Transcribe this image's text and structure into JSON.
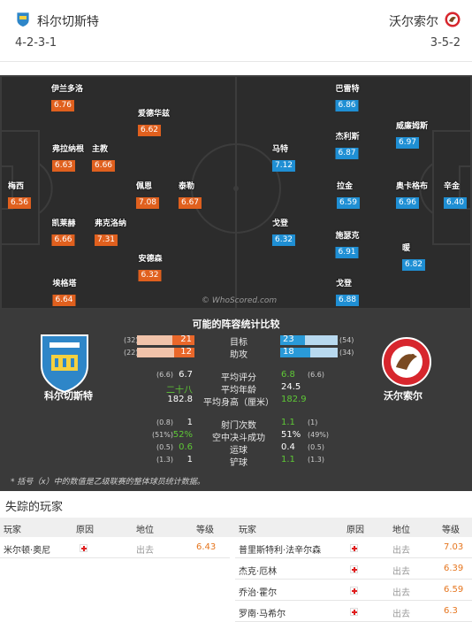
{
  "header": {
    "home": {
      "name": "科尔切斯特",
      "formation": "4-2-3-1",
      "crest": "colchester-crest-icon"
    },
    "away": {
      "name": "沃尔索尔",
      "formation": "3-5-2",
      "crest": "walsall-crest-icon"
    }
  },
  "pitch": {
    "watermark": "© WhoScored.com",
    "home_players": [
      {
        "name": "伊兰多洛",
        "rating": "6.76"
      },
      {
        "name": "爱德华兹",
        "rating": "6.62"
      },
      {
        "name": "弗拉纳根",
        "rating": "6.63"
      },
      {
        "name": "主教",
        "rating": "6.66"
      },
      {
        "name": "梅西",
        "rating": "6.56"
      },
      {
        "name": "佩恩",
        "rating": "7.08"
      },
      {
        "name": "泰勒",
        "rating": "6.67"
      },
      {
        "name": "凯莱赫",
        "rating": "6.66"
      },
      {
        "name": "弗克洛纳",
        "rating": "7.31"
      },
      {
        "name": "安德森",
        "rating": "6.32"
      },
      {
        "name": "埃格塔",
        "rating": "6.64"
      }
    ],
    "away_players": [
      {
        "name": "巴雷特",
        "rating": "6.86"
      },
      {
        "name": "威廉姆斯",
        "rating": "6.97"
      },
      {
        "name": "马特",
        "rating": "7.12"
      },
      {
        "name": "杰利斯",
        "rating": "6.87"
      },
      {
        "name": "拉金",
        "rating": "6.59"
      },
      {
        "name": "奥卡格布",
        "rating": "6.96"
      },
      {
        "name": "辛金",
        "rating": "6.40"
      },
      {
        "name": "戈登",
        "rating": "6.32"
      },
      {
        "name": "施瑟克",
        "rating": "6.91"
      },
      {
        "name": "暖",
        "rating": "6.82"
      },
      {
        "name": "戈登",
        "rating": "6.88"
      }
    ]
  },
  "comparison": {
    "title": "可能的阵容统计比较",
    "home_team": "科尔切斯特",
    "away_team": "沃尔索尔",
    "bars": [
      {
        "label": "目标",
        "home": "21",
        "home_prev": "(32)",
        "away": "23",
        "away_prev": "(54)",
        "home_frac": 0.39,
        "away_frac": 0.43
      },
      {
        "label": "助攻",
        "home": "12",
        "home_prev": "(22)",
        "away": "18",
        "away_prev": "(34)",
        "home_frac": 0.35,
        "away_frac": 0.53
      }
    ],
    "stats_a": [
      {
        "label": "平均评分",
        "home": "6.7",
        "home_prev": "(6.6)",
        "away": "6.8",
        "away_prev": "(6.6)",
        "home_green": false,
        "away_green": true
      },
      {
        "label": "平均年龄",
        "home": "二十八",
        "home_prev": "",
        "away": "24.5",
        "away_prev": "",
        "home_green": true,
        "away_green": false
      },
      {
        "label": "平均身高（厘米）",
        "home": "182.8",
        "home_prev": "",
        "away": "182.9",
        "away_prev": "",
        "home_green": false,
        "away_green": true
      }
    ],
    "stats_b": [
      {
        "label": "射门次数",
        "home": "1",
        "home_prev": "(0.8)",
        "away": "1.1",
        "away_prev": "(1)",
        "home_green": false,
        "away_green": true
      },
      {
        "label": "空中决斗成功",
        "home": "52%",
        "home_prev": "(51%)",
        "away": "51%",
        "away_prev": "(49%)",
        "home_green": true,
        "away_green": false
      },
      {
        "label": "运球",
        "home": "0.6",
        "home_prev": "(0.5)",
        "away": "0.4",
        "away_prev": "(0.5)",
        "home_green": true,
        "away_green": false
      },
      {
        "label": "铲球",
        "home": "1",
        "home_prev": "(1.3)",
        "away": "1.1",
        "away_prev": "(1.3)",
        "home_green": false,
        "away_green": true
      }
    ],
    "footnote": "* 括号（x）中的数值是乙级联赛的整体球员统计数据。"
  },
  "missing": {
    "title": "失踪的玩家",
    "columns": {
      "player": "玩家",
      "reason": "原因",
      "status": "地位",
      "rating": "等级"
    },
    "home": [
      {
        "player": "米尔顿·奥尼",
        "status": "出去",
        "rating": "6.43"
      }
    ],
    "away": [
      {
        "player": "普里斯特利·法辛尔森",
        "status": "出去",
        "rating": "7.03"
      },
      {
        "player": "杰克·厄林",
        "status": "出去",
        "rating": "6.39"
      },
      {
        "player": "乔治·霍尔",
        "status": "出去",
        "rating": "6.59"
      },
      {
        "player": "罗南·马希尔",
        "status": "出去",
        "rating": "6.3"
      }
    ]
  },
  "colors": {
    "home_accent": "#e9672a",
    "away_accent": "#2a9ad8",
    "positive": "#5ec836"
  }
}
